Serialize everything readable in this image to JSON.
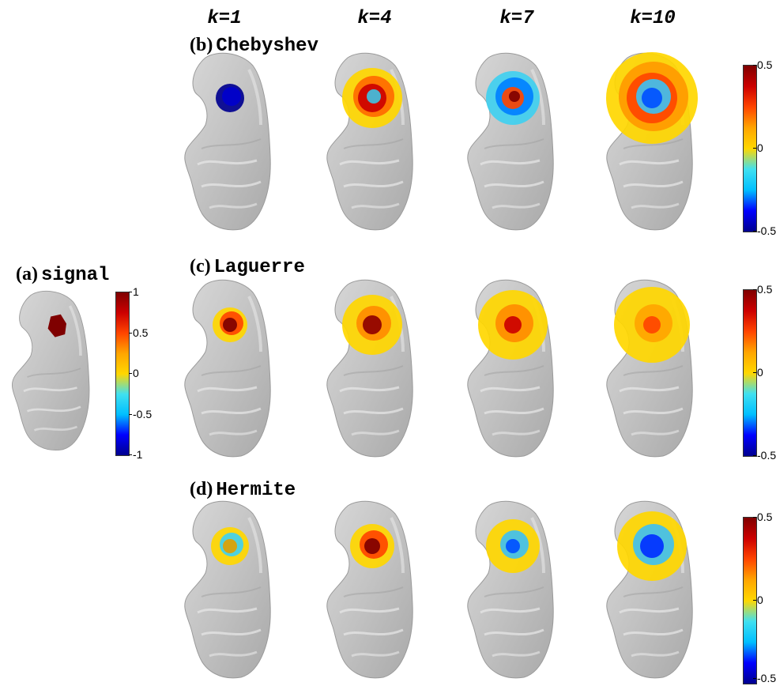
{
  "columns": [
    "k=1",
    "k=4",
    "k=7",
    "k=10"
  ],
  "panels": {
    "a": {
      "letter": "(a)",
      "name": "signal"
    },
    "b": {
      "letter": "(b)",
      "name": "Chebyshev"
    },
    "c": {
      "letter": "(c)",
      "name": "Laguerre"
    },
    "d": {
      "letter": "(d)",
      "name": "Hermite"
    }
  },
  "colorbars": {
    "signal": {
      "ticks": [
        "1",
        "0.5",
        "0",
        "-0.5",
        "-1"
      ],
      "min": -1,
      "max": 1
    },
    "filtered": {
      "ticks": [
        "0.5",
        "0",
        "-0.5"
      ],
      "min": -0.5,
      "max": 0.5
    }
  },
  "colors": {
    "surface": "#bfbfbf",
    "jet": [
      "#00008f",
      "#0000ff",
      "#00bfff",
      "#40e0f0",
      "#ffd700",
      "#ffa500",
      "#ff4500",
      "#cc0000",
      "#7f0000"
    ]
  }
}
